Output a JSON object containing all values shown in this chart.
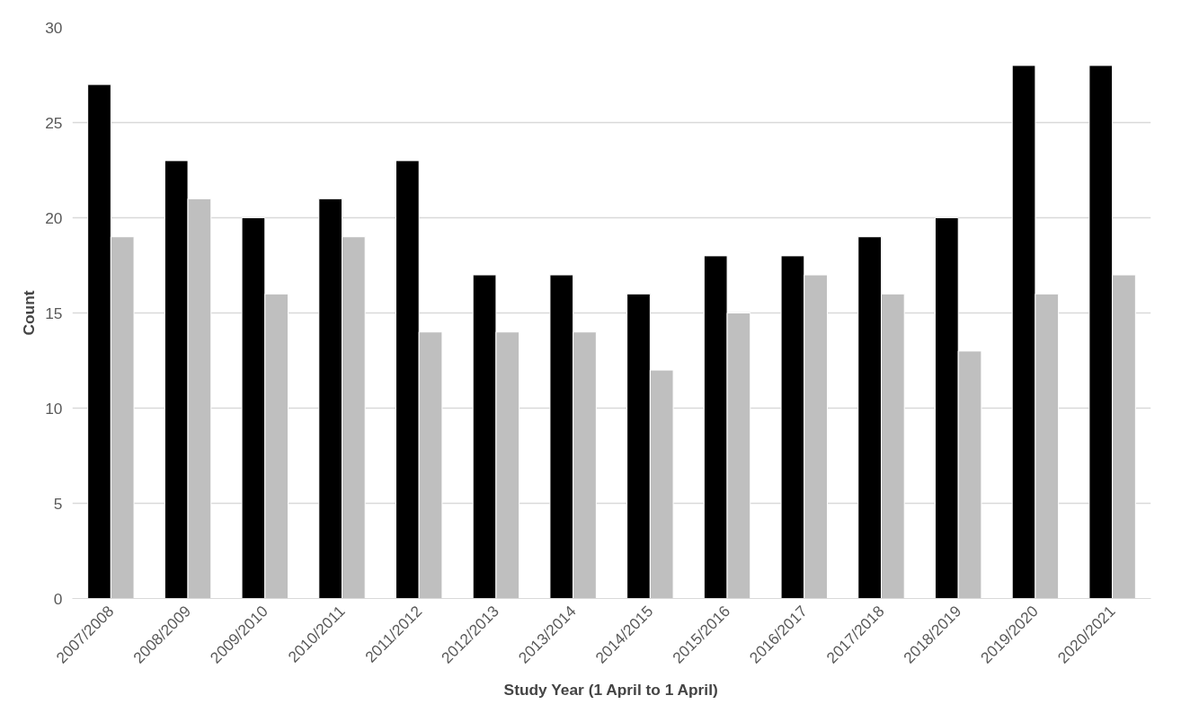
{
  "chart_data": {
    "type": "bar",
    "xlabel": "Study Year (1 April to 1 April)",
    "ylabel": "Count",
    "categories": [
      "2007/2008",
      "2008/2009",
      "2009/2010",
      "2010/2011",
      "2011/2012",
      "2012/2013",
      "2013/2014",
      "2014/2015",
      "2015/2016",
      "2016/2017",
      "2017/2018",
      "2018/2019",
      "2019/2020",
      "2020/2021"
    ],
    "series": [
      {
        "color": "#000000",
        "values": [
          27,
          23,
          20,
          21,
          23,
          17,
          17,
          16,
          18,
          18,
          19,
          20,
          28,
          28
        ]
      },
      {
        "color": "#bfbfbf",
        "values": [
          19,
          21,
          16,
          19,
          14,
          14,
          14,
          12,
          15,
          17,
          16,
          13,
          16,
          17
        ]
      }
    ],
    "ylim": [
      0,
      30
    ],
    "yticks": [
      0,
      5,
      10,
      15,
      20,
      25,
      30
    ],
    "grid": "y"
  }
}
